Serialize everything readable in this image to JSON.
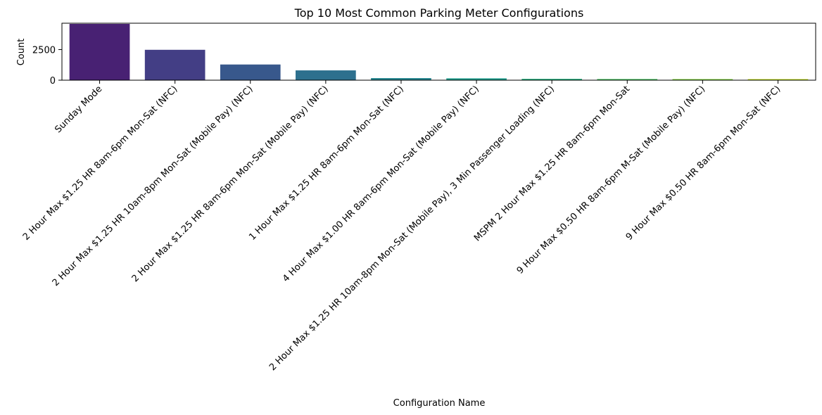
{
  "chart_data": {
    "type": "bar",
    "title": "Top 10 Most Common Parking Meter Configurations",
    "xlabel": "Configuration Name",
    "ylabel": "Count",
    "categories": [
      "Sunday Mode",
      "2 Hour Max $1.25 HR 8am-6pm Mon-Sat (NFC)",
      "2 Hour Max $1.25 HR 10am-8pm Mon-Sat (Mobile Pay) (NFC)",
      "2 Hour Max $1.25 HR 8am-6pm Mon-Sat (Mobile Pay) (NFC)",
      "1 Hour Max $1.25 HR 8am-6pm Mon-Sat (NFC)",
      "4 Hour Max $1.00 HR 8am-6pm Mon-Sat (Mobile Pay) (NFC)",
      "2 Hour Max $1.25 HR 10am-8pm Mon-Sat (Mobile Pay), 3 Min Passenger Loading (NFC)",
      "MSPM 2 Hour Max $1.25 HR 8am-6pm Mon-Sat",
      "9 Hour Max $0.50 HR 8am-6pm M-Sat  (Mobile Pay) (NFC)",
      "9 Hour Max $0.50 HR 8am-6pm Mon-Sat (NFC)"
    ],
    "values": [
      4650,
      2480,
      1280,
      800,
      170,
      150,
      110,
      100,
      95,
      90
    ],
    "ylim": [
      0,
      4650
    ],
    "yticks": [
      0,
      2500
    ],
    "colors": [
      "#482173",
      "#433e85",
      "#38588c",
      "#2d708e",
      "#25858e",
      "#1e9b8a",
      "#2ab07f",
      "#52c569",
      "#86d549",
      "#c2df23"
    ],
    "grid": false,
    "legend": "none"
  }
}
